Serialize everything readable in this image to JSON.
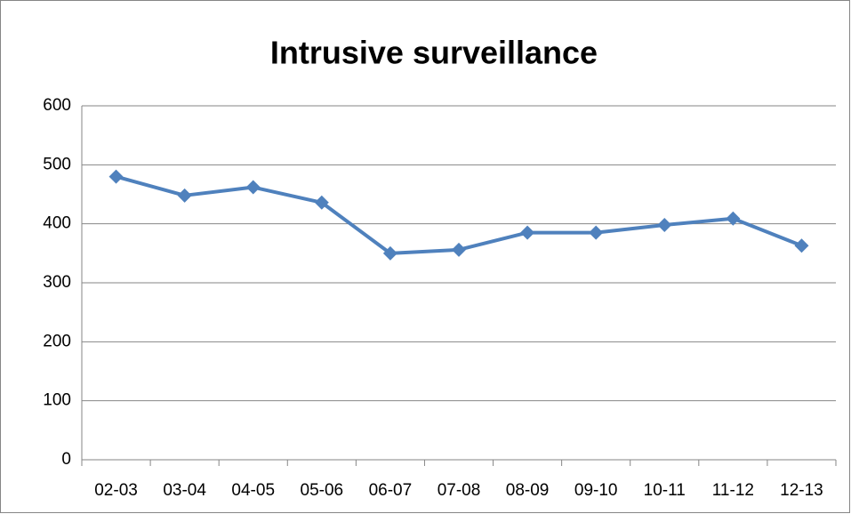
{
  "chart_data": {
    "type": "line",
    "title": "Intrusive surveillance",
    "categories": [
      "02-03",
      "03-04",
      "04-05",
      "05-06",
      "06-07",
      "07-08",
      "08-09",
      "09-10",
      "10-11",
      "11-12",
      "12-13"
    ],
    "series": [
      {
        "name": "Intrusive surveillance",
        "color": "#4f81bd",
        "values": [
          480,
          448,
          462,
          436,
          350,
          356,
          385,
          385,
          398,
          409,
          363
        ]
      }
    ],
    "ylim": [
      0,
      600
    ],
    "yticks": [
      0,
      100,
      200,
      300,
      400,
      500,
      600
    ],
    "grid": true
  }
}
